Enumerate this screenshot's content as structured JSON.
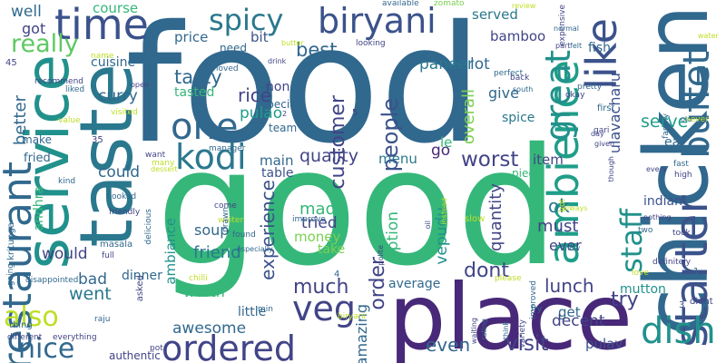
{
  "palette": {
    "navy": "#443983",
    "indigo": "#414487",
    "blue": "#3b528b",
    "steel": "#31688e",
    "teal": "#21918c",
    "sea": "#2a788e",
    "green": "#35b779",
    "lime": "#7ad151",
    "yellow": "#bddf26",
    "purple": "#482878",
    "dark": "#440154",
    "mint": "#5ec962",
    "aqua": "#1f9e89",
    "grass": "#6ccd5a"
  },
  "words": [
    {
      "text": "food",
      "color": "steel"
    },
    {
      "text": "good",
      "color": "green"
    },
    {
      "text": "place",
      "color": "purple"
    },
    {
      "text": "chicken",
      "color": "steel"
    },
    {
      "text": "service",
      "color": "teal"
    },
    {
      "text": "taste",
      "color": "sea"
    },
    {
      "text": "restaurant",
      "color": "steel"
    },
    {
      "text": "biryani",
      "color": "blue"
    },
    {
      "text": "spicy",
      "color": "sea"
    },
    {
      "text": "time",
      "color": "blue"
    },
    {
      "text": "ambience",
      "color": "aqua"
    },
    {
      "text": "like",
      "color": "blue"
    },
    {
      "text": "buffet",
      "color": "steel"
    },
    {
      "text": "starter",
      "color": "blue"
    },
    {
      "text": "ordered",
      "color": "indigo"
    },
    {
      "text": "one",
      "color": "steel"
    },
    {
      "text": "kodi",
      "color": "sea"
    },
    {
      "text": "staff",
      "color": "teal"
    },
    {
      "text": "great",
      "color": "teal"
    },
    {
      "text": "dish",
      "color": "teal"
    },
    {
      "text": "nice",
      "color": "steel"
    },
    {
      "text": "veg",
      "color": "indigo"
    },
    {
      "text": "also",
      "color": "yellow"
    },
    {
      "text": "really",
      "color": "mint"
    },
    {
      "text": "well",
      "color": "steel"
    },
    {
      "text": "course",
      "color": "green"
    },
    {
      "text": "ulavacharu",
      "color": "blue"
    },
    {
      "text": "served",
      "color": "sea"
    },
    {
      "text": "lot",
      "color": "steel"
    },
    {
      "text": "paneer",
      "color": "sea"
    },
    {
      "text": "bamboo",
      "color": "indigo"
    },
    {
      "text": "fish",
      "color": "steel"
    },
    {
      "text": "serve",
      "color": "aqua"
    },
    {
      "text": "eat",
      "color": "steel"
    },
    {
      "text": "price",
      "color": "steel"
    },
    {
      "text": "bit",
      "color": "blue"
    },
    {
      "text": "best",
      "color": "steel"
    },
    {
      "text": "tasty",
      "color": "steel"
    },
    {
      "text": "tasted",
      "color": "green"
    },
    {
      "text": "rice",
      "color": "indigo"
    },
    {
      "text": "pulao",
      "color": "aqua"
    },
    {
      "text": "curry",
      "color": "steel"
    },
    {
      "text": "cuisine",
      "color": "steel"
    },
    {
      "text": "got",
      "color": "indigo"
    },
    {
      "text": "people",
      "color": "blue"
    },
    {
      "text": "overall",
      "color": "lime"
    },
    {
      "text": "give",
      "color": "steel"
    },
    {
      "text": "spice",
      "color": "sea"
    },
    {
      "text": "customer",
      "color": "indigo"
    },
    {
      "text": "quality",
      "color": "indigo"
    },
    {
      "text": "menu",
      "color": "sea"
    },
    {
      "text": "go",
      "color": "purple"
    },
    {
      "text": "le",
      "color": "green"
    },
    {
      "text": "worst",
      "color": "indigo"
    },
    {
      "text": "item",
      "color": "indigo"
    },
    {
      "text": "main",
      "color": "steel"
    },
    {
      "text": "table",
      "color": "blue"
    },
    {
      "text": "experience",
      "color": "blue"
    },
    {
      "text": "made",
      "color": "green"
    },
    {
      "text": "tried",
      "color": "indigo"
    },
    {
      "text": "money",
      "color": "lime"
    },
    {
      "text": "option",
      "color": "green"
    },
    {
      "text": "quantity",
      "color": "indigo"
    },
    {
      "text": "ok",
      "color": "sea"
    },
    {
      "text": "must",
      "color": "indigo"
    },
    {
      "text": "ever",
      "color": "indigo"
    },
    {
      "text": "vepudu",
      "color": "teal"
    },
    {
      "text": "indian",
      "color": "blue"
    },
    {
      "text": "friend",
      "color": "sea"
    },
    {
      "text": "would",
      "color": "indigo"
    },
    {
      "text": "bad",
      "color": "steel"
    },
    {
      "text": "went",
      "color": "sea"
    },
    {
      "text": "worth",
      "color": "green"
    },
    {
      "text": "much",
      "color": "indigo"
    },
    {
      "text": "dont",
      "color": "indigo"
    },
    {
      "text": "order",
      "color": "indigo"
    },
    {
      "text": "lunch",
      "color": "indigo"
    },
    {
      "text": "try",
      "color": "indigo"
    },
    {
      "text": "mutton",
      "color": "teal"
    },
    {
      "text": "get",
      "color": "steel"
    },
    {
      "text": "decent",
      "color": "indigo"
    },
    {
      "text": "visit",
      "color": "indigo"
    },
    {
      "text": "even",
      "color": "steel"
    },
    {
      "text": "pulav",
      "color": "blue"
    },
    {
      "text": "awesome",
      "color": "steel"
    },
    {
      "text": "little",
      "color": "steel"
    },
    {
      "text": "amazing",
      "color": "steel"
    },
    {
      "text": "average",
      "color": "steel"
    },
    {
      "text": "soup",
      "color": "steel"
    },
    {
      "text": "could",
      "color": "steel"
    },
    {
      "text": "dinner",
      "color": "steel"
    },
    {
      "text": "authentic",
      "color": "indigo"
    },
    {
      "text": "better",
      "color": "steel"
    },
    {
      "text": "make",
      "color": "steel"
    },
    {
      "text": "fried",
      "color": "steel"
    },
    {
      "text": "andhra",
      "color": "green"
    },
    {
      "text": "ambiance",
      "color": "teal"
    },
    {
      "text": "take",
      "color": "lime"
    },
    {
      "text": "special",
      "color": "steel"
    },
    {
      "text": "team",
      "color": "steel"
    },
    {
      "text": "non",
      "color": "indigo"
    },
    {
      "text": "need",
      "color": "steel"
    },
    {
      "text": "piece",
      "color": "green"
    },
    {
      "text": "zomato",
      "color": "lime"
    },
    {
      "text": "available",
      "color": "steel"
    },
    {
      "text": "review",
      "color": "yellow"
    },
    {
      "text": "expensive",
      "color": "indigo"
    },
    {
      "text": "normal",
      "color": "steel"
    },
    {
      "text": "part",
      "color": "indigo"
    },
    {
      "text": "felt",
      "color": "steel"
    },
    {
      "text": "never",
      "color": "yellow"
    },
    {
      "text": "water",
      "color": "yellow"
    },
    {
      "text": "old",
      "color": "steel"
    },
    {
      "text": "perfect",
      "color": "steel"
    },
    {
      "text": "back",
      "color": "indigo"
    },
    {
      "text": "south",
      "color": "steel"
    },
    {
      "text": "pretty",
      "color": "steel"
    },
    {
      "text": "okay",
      "color": "indigo"
    },
    {
      "text": "first",
      "color": "steel"
    },
    {
      "text": "gari",
      "color": "indigo"
    },
    {
      "text": "given",
      "color": "indigo"
    },
    {
      "text": "day",
      "color": "indigo"
    },
    {
      "text": "family",
      "color": "steel"
    },
    {
      "text": "high",
      "color": "indigo"
    },
    {
      "text": "fast",
      "color": "steel"
    },
    {
      "text": "though",
      "color": "indigo"
    },
    {
      "text": "every",
      "color": "indigo"
    },
    {
      "text": "two",
      "color": "steel"
    },
    {
      "text": "took",
      "color": "indigo"
    },
    {
      "text": "nothing",
      "color": "indigo"
    },
    {
      "text": "definitely",
      "color": "indigo"
    },
    {
      "text": "always",
      "color": "yellow"
    },
    {
      "text": "hot",
      "color": "yellow"
    },
    {
      "text": "know",
      "color": "sea"
    },
    {
      "text": "love",
      "color": "yellow"
    },
    {
      "text": "didnt",
      "color": "indigo"
    },
    {
      "text": "improved",
      "color": "steel"
    },
    {
      "text": "variety",
      "color": "indigo"
    },
    {
      "text": "rating",
      "color": "steel"
    },
    {
      "text": "waiting",
      "color": "indigo"
    },
    {
      "text": "think",
      "color": "steel"
    },
    {
      "text": "fry",
      "color": "steel"
    },
    {
      "text": "please",
      "color": "yellow"
    },
    {
      "text": "instead",
      "color": "yellow"
    },
    {
      "text": "oil",
      "color": "indigo"
    },
    {
      "text": "slow",
      "color": "yellow"
    },
    {
      "text": "polite",
      "color": "indigo"
    },
    {
      "text": "improve",
      "color": "steel"
    },
    {
      "text": "chilli",
      "color": "yellow"
    },
    {
      "text": "come",
      "color": "indigo"
    },
    {
      "text": "waiter",
      "color": "yellow"
    },
    {
      "text": "prawn",
      "color": "steel"
    },
    {
      "text": "found",
      "color": "steel"
    },
    {
      "text": "especially",
      "color": "steel"
    },
    {
      "text": "asked",
      "color": "indigo"
    },
    {
      "text": "pot",
      "color": "indigo"
    },
    {
      "text": "min",
      "color": "steel"
    },
    {
      "text": "biryani",
      "color": "yellow"
    },
    {
      "text": "raju",
      "color": "steel"
    },
    {
      "text": "masala",
      "color": "steel"
    },
    {
      "text": "full",
      "color": "indigo"
    },
    {
      "text": "delicious",
      "color": "steel"
    },
    {
      "text": "cooked",
      "color": "steel"
    },
    {
      "text": "friendly",
      "color": "indigo"
    },
    {
      "text": "kritunga",
      "color": "steel"
    },
    {
      "text": "disappointed",
      "color": "steel"
    },
    {
      "text": "thing",
      "color": "steel"
    },
    {
      "text": "different",
      "color": "indigo"
    },
    {
      "text": "everything",
      "color": "indigo"
    },
    {
      "text": "going",
      "color": "steel"
    },
    {
      "text": "kind",
      "color": "steel"
    },
    {
      "text": "want",
      "color": "indigo"
    },
    {
      "text": "many",
      "color": "yellow"
    },
    {
      "text": "dessert",
      "color": "yellow"
    },
    {
      "text": "manager",
      "color": "steel"
    },
    {
      "text": "visited",
      "color": "yellow"
    },
    {
      "text": "recommend",
      "color": "indigo"
    },
    {
      "text": "value",
      "color": "yellow"
    },
    {
      "text": "liked",
      "color": "steel"
    },
    {
      "text": "name",
      "color": "yellow"
    },
    {
      "text": "open",
      "color": "indigo"
    },
    {
      "text": "loved",
      "color": "steel"
    },
    {
      "text": "drink",
      "color": "indigo"
    },
    {
      "text": "butter",
      "color": "yellow"
    },
    {
      "text": "looking",
      "color": "indigo"
    },
    {
      "text": "quite",
      "color": "steel"
    },
    {
      "text": "2",
      "color": "indigo"
    },
    {
      "text": "5",
      "color": "indigo"
    },
    {
      "text": "45",
      "color": "indigo"
    },
    {
      "text": "35",
      "color": "indigo"
    },
    {
      "text": "4",
      "color": "steel"
    },
    {
      "text": "3",
      "color": "indigo"
    },
    {
      "text": "1",
      "color": "steel"
    }
  ]
}
